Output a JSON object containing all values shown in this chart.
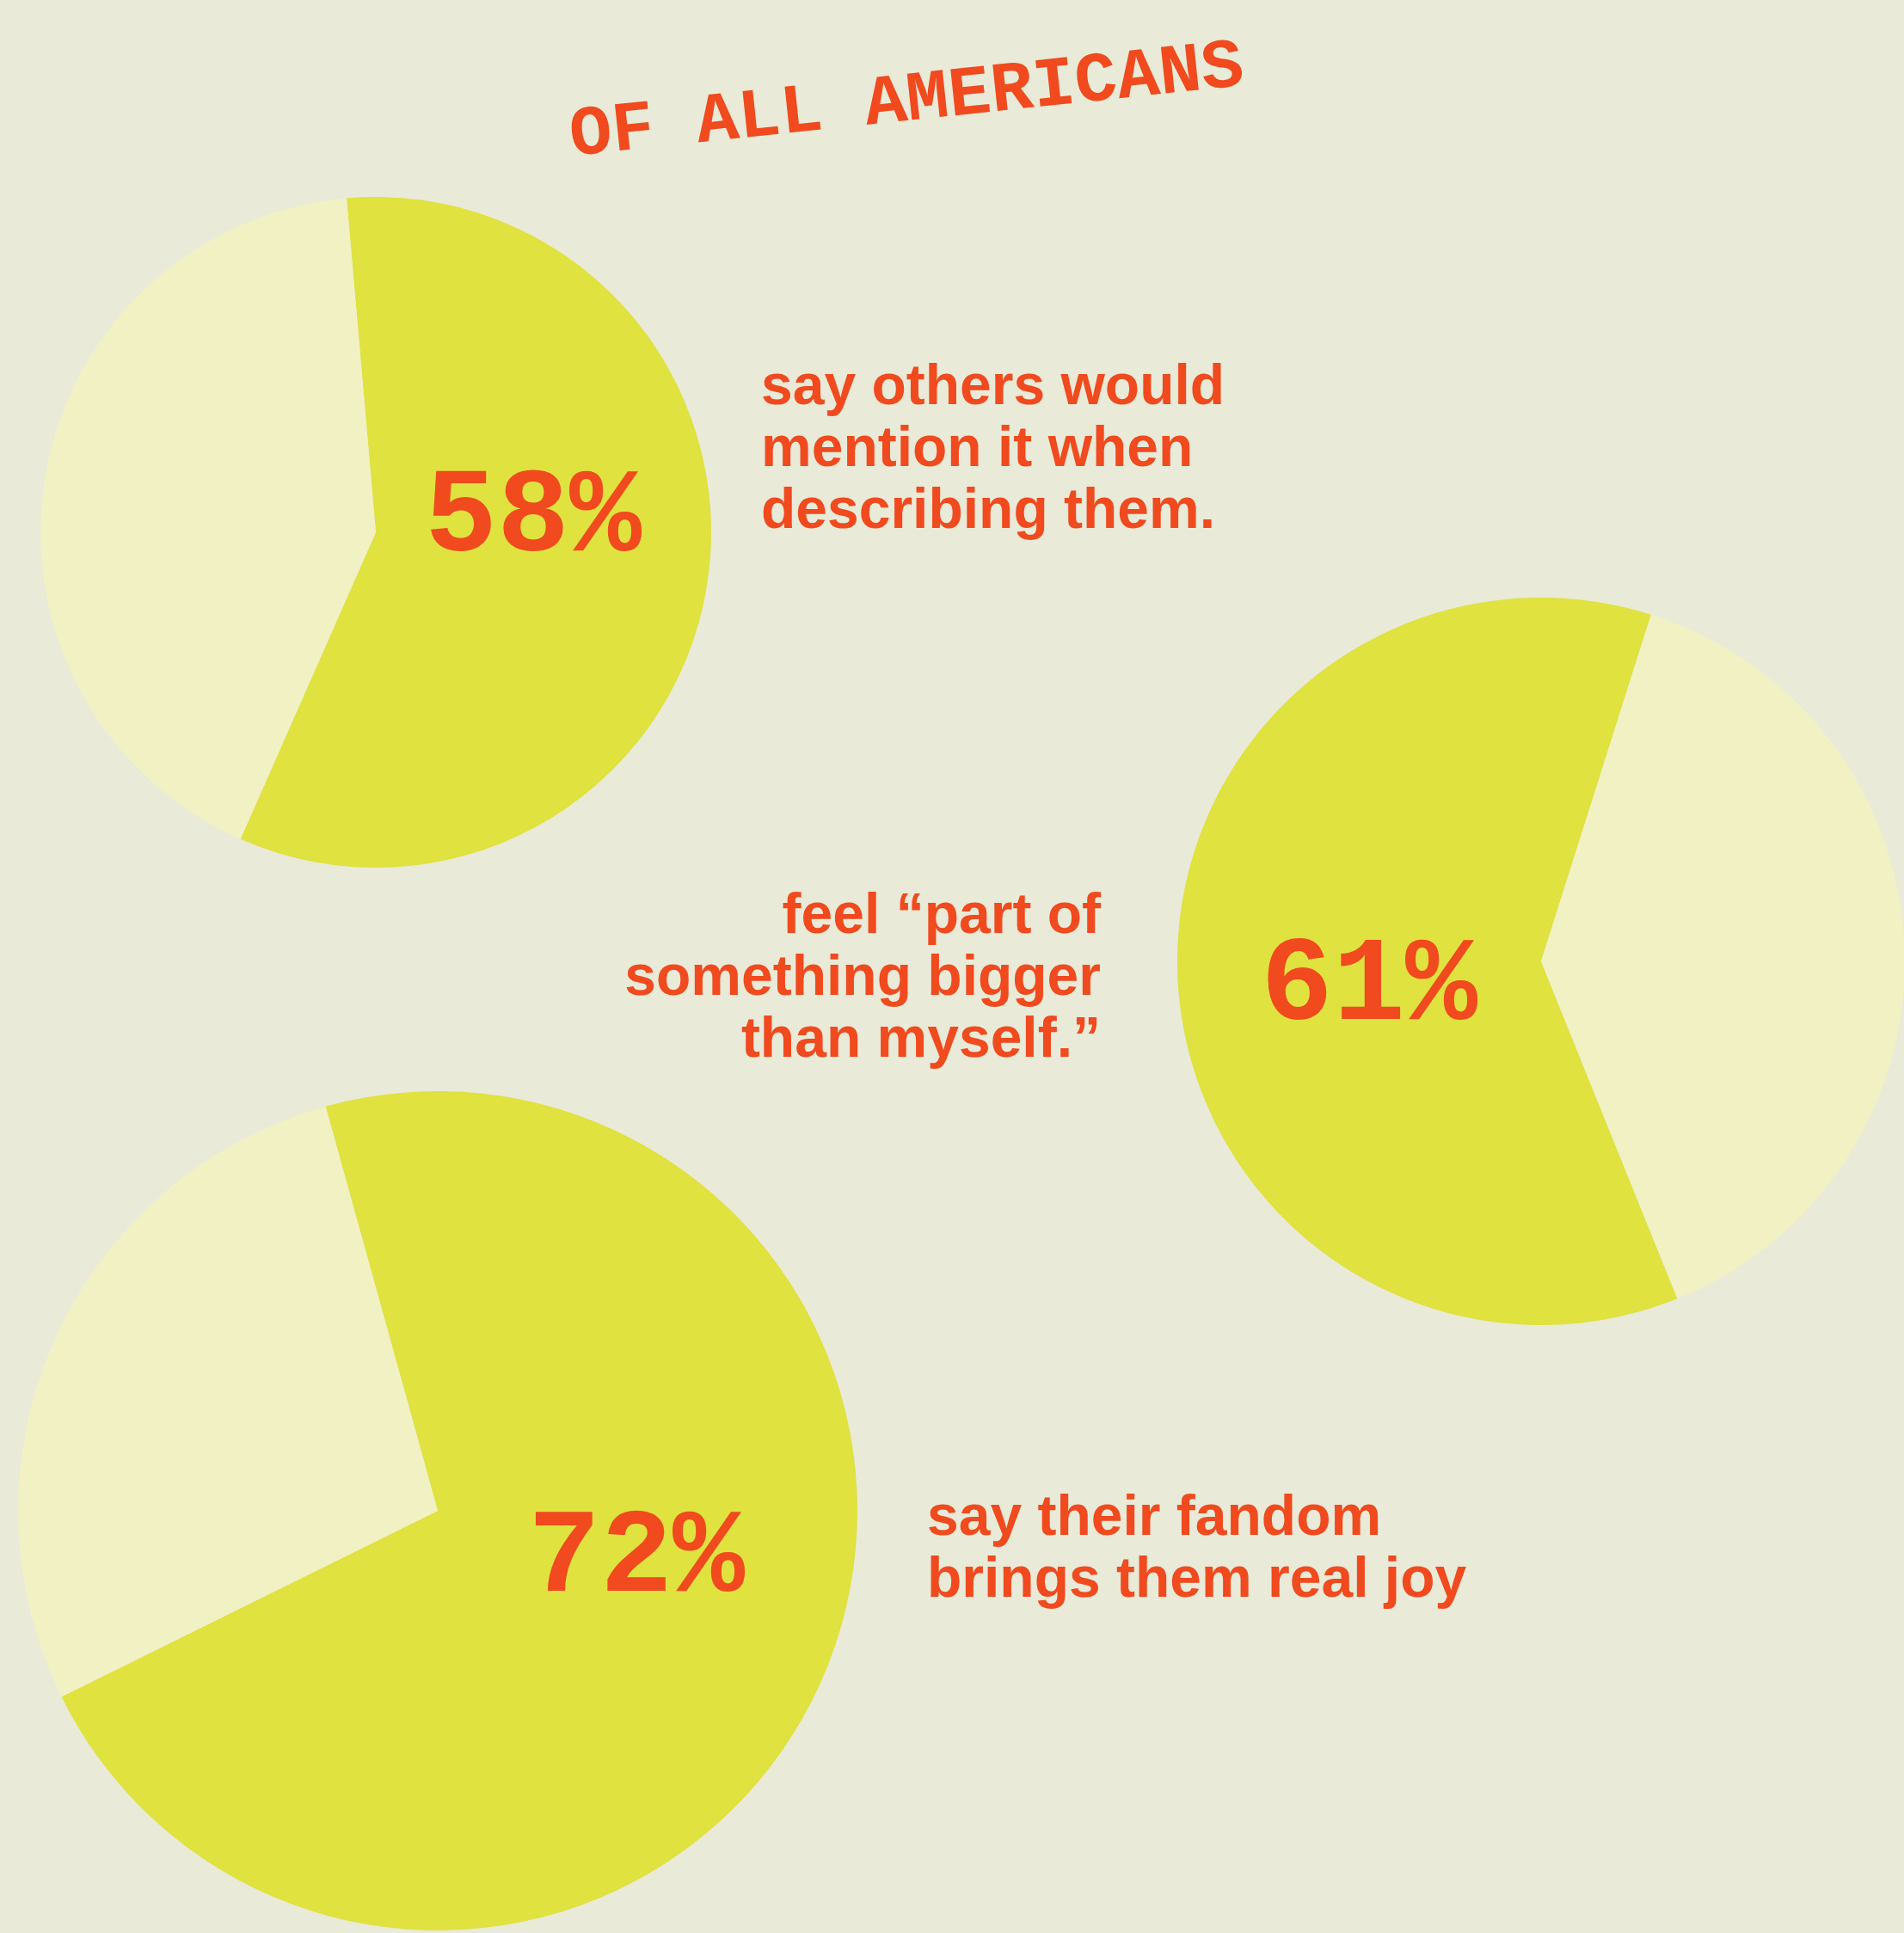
{
  "chart_data": [
    {
      "type": "pie",
      "title": "OF ALL AMERICANS",
      "categories": [
        null,
        null
      ],
      "values": [
        58,
        42
      ],
      "colors": [
        "#dfe23f",
        "#f1f1c4"
      ],
      "value_labels": [
        "58%",
        null
      ],
      "annotations": [
        "say others would mention it when describing them."
      ]
    },
    {
      "type": "pie",
      "categories": [
        null,
        null
      ],
      "values": [
        61,
        39
      ],
      "colors": [
        "#dfe23f",
        "#f1f1c4"
      ],
      "value_labels": [
        "61%",
        null
      ],
      "annotations": [
        "feel “part of something bigger than myself.”"
      ]
    },
    {
      "type": "pie",
      "categories": [
        null,
        null
      ],
      "values": [
        72,
        28
      ],
      "colors": [
        "#dfe23f",
        "#f1f1c4"
      ],
      "value_labels": [
        "72%",
        null
      ],
      "annotations": [
        "say their fandom brings them real joy"
      ]
    }
  ]
}
